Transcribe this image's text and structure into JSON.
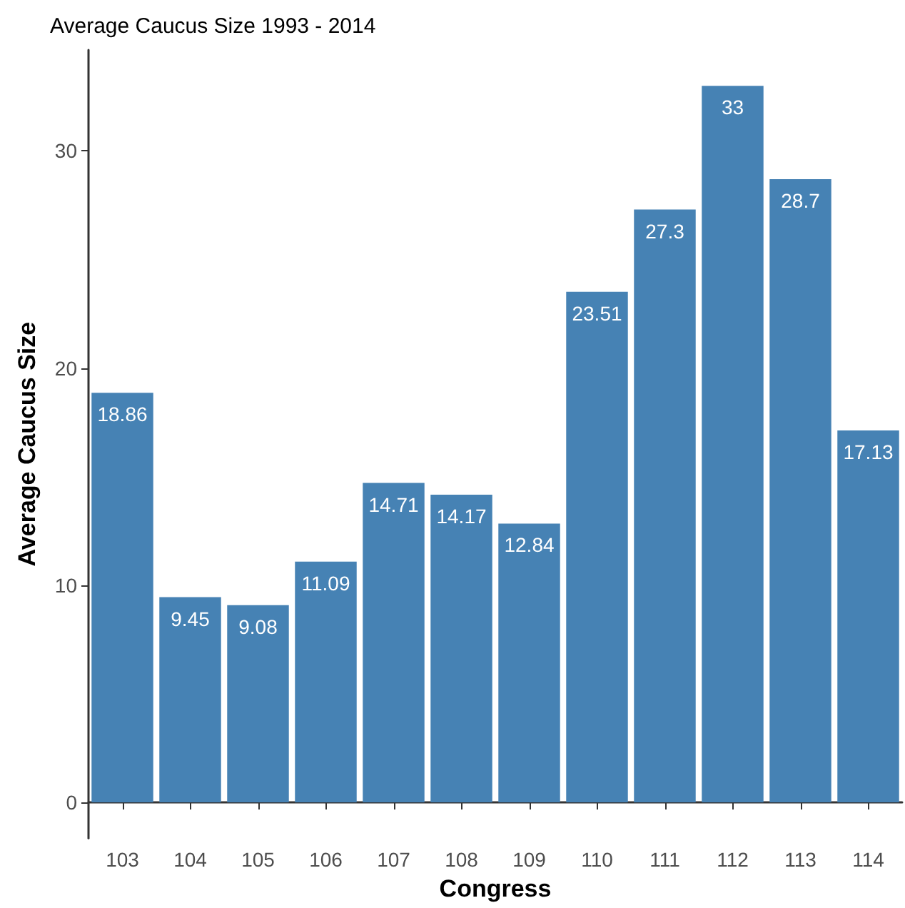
{
  "chart_data": {
    "type": "bar",
    "title": "Average Caucus Size 1993 - 2014",
    "xlabel": "Congress",
    "ylabel": "Average Caucus Size",
    "categories": [
      "103",
      "104",
      "105",
      "106",
      "107",
      "108",
      "109",
      "110",
      "111",
      "112",
      "113",
      "114"
    ],
    "values": [
      18.86,
      9.45,
      9.08,
      11.09,
      14.71,
      14.17,
      12.84,
      23.51,
      27.3,
      33,
      28.7,
      17.13
    ],
    "color": "#4682b4",
    "data_labels": true,
    "ylim": [
      -1.65,
      34.65
    ],
    "yticks": [
      0,
      10,
      20,
      30
    ],
    "grid": false
  }
}
